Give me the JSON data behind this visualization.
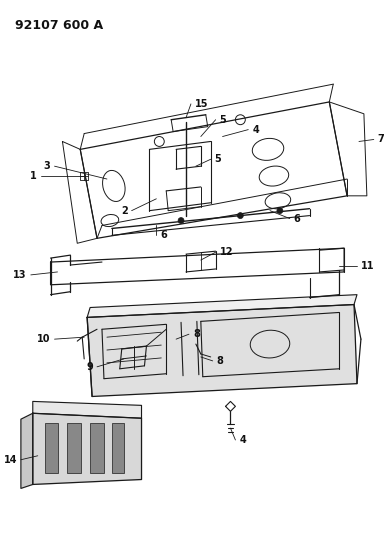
{
  "title": "92107 600 A",
  "bg_color": "#ffffff",
  "line_color": "#1a1a1a",
  "title_fontsize": 9,
  "label_fontsize": 7,
  "fig_width": 3.9,
  "fig_height": 5.33,
  "dpi": 100
}
